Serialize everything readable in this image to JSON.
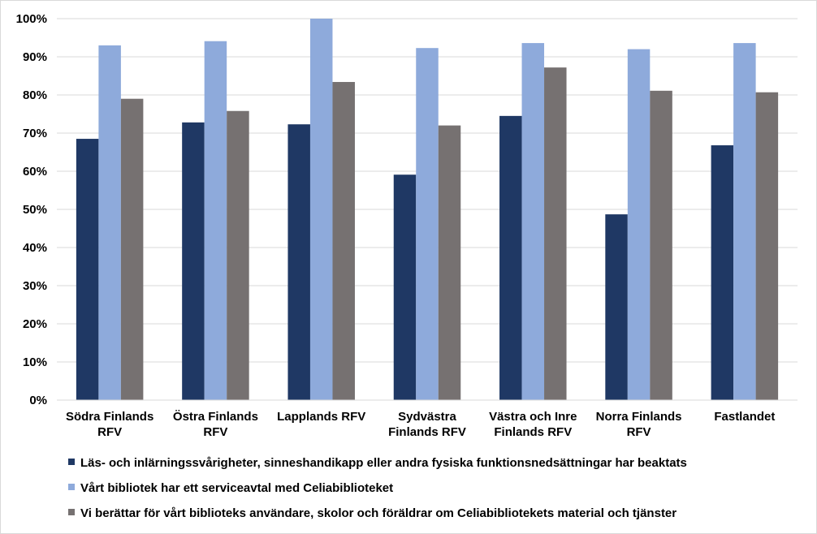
{
  "chart_data": {
    "type": "bar",
    "title": "",
    "xlabel": "",
    "ylabel": "",
    "ylim": [
      0,
      1
    ],
    "yticks": [
      "0%",
      "10%",
      "20%",
      "30%",
      "40%",
      "50%",
      "60%",
      "70%",
      "80%",
      "90%",
      "100%"
    ],
    "grid": true,
    "legend_position": "bottom",
    "categories": [
      [
        "Södra Finlands",
        "RFV"
      ],
      [
        "Östra Finlands",
        "RFV"
      ],
      [
        "Lapplands RFV"
      ],
      [
        "Sydvästra",
        "Finlands RFV"
      ],
      [
        "Västra och Inre",
        "Finlands RFV"
      ],
      [
        "Norra Finlands",
        "RFV"
      ],
      [
        "Fastlandet"
      ]
    ],
    "series": [
      {
        "name": "Läs- och inlärningssvårigheter, sinneshandikapp eller andra fysiska funktionsnedsättningar har beaktats",
        "color": "#1f3864",
        "values": [
          0.685,
          0.728,
          0.723,
          0.591,
          0.745,
          0.487,
          0.668
        ]
      },
      {
        "name": "Vårt bibliotek har ett serviceavtal med Celiabiblioteket",
        "color": "#8eaadb",
        "values": [
          0.93,
          0.941,
          1.0,
          0.923,
          0.936,
          0.92,
          0.936
        ]
      },
      {
        "name": "Vi berättar för vårt biblioteks användare, skolor och föräldrar om Celiabibliotekets material och tjänster",
        "color": "#767171",
        "values": [
          0.79,
          0.758,
          0.834,
          0.72,
          0.872,
          0.811,
          0.807
        ]
      }
    ]
  }
}
